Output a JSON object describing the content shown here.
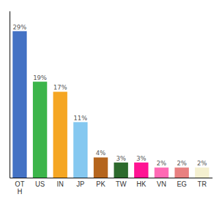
{
  "chart_data": {
    "type": "bar",
    "categories": [
      "OT\nH",
      "US",
      "IN",
      "JP",
      "PK",
      "TW",
      "HK",
      "VN",
      "EG",
      "TR"
    ],
    "values": [
      29,
      19,
      17,
      11,
      4,
      3,
      3,
      2,
      2,
      2
    ],
    "value_labels": [
      "29%",
      "19%",
      "17%",
      "11%",
      "4%",
      "3%",
      "3%",
      "2%",
      "2%",
      "2%"
    ],
    "colors": [
      "#4472c4",
      "#3cb54a",
      "#f5a623",
      "#85c8f0",
      "#b5651d",
      "#2d6a2d",
      "#ff1493",
      "#ff69b4",
      "#e88080",
      "#f5f0d0"
    ],
    "ylim": [
      0,
      33
    ],
    "data_labels": true,
    "tick_labels": "x"
  }
}
